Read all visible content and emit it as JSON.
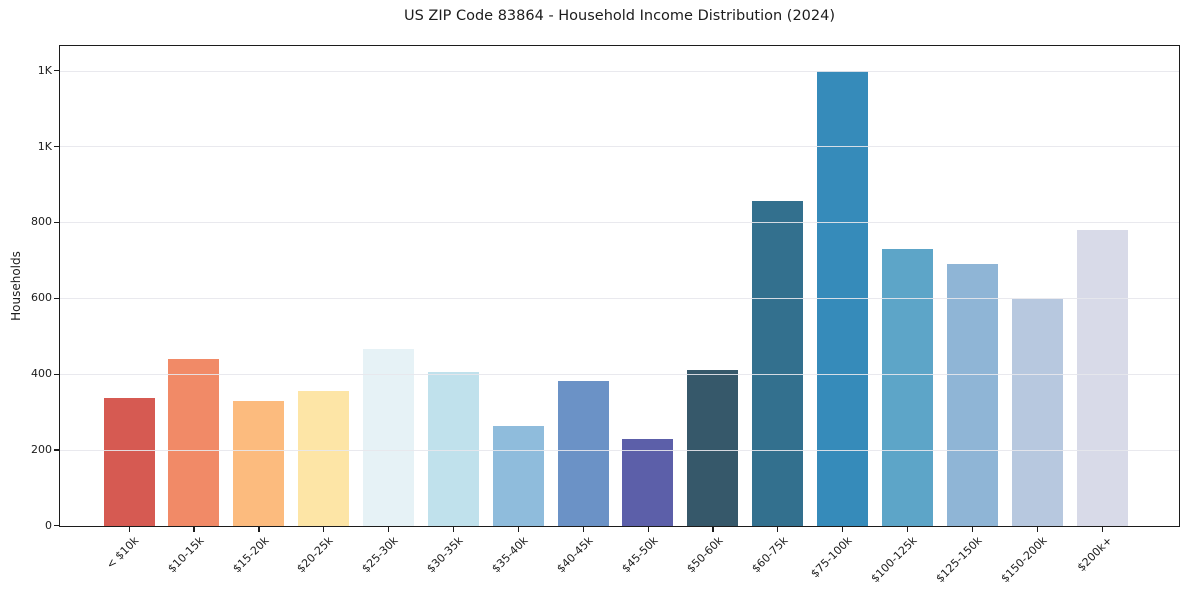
{
  "chart": {
    "title": "US ZIP Code 83864 - Household Income Distribution (2024)",
    "ylabel": "Households"
  },
  "chart_data": {
    "type": "bar",
    "title": "US ZIP Code 83864 - Household Income Distribution (2024)",
    "xlabel": "",
    "ylabel": "Households",
    "categories": [
      "< $10k",
      "$10-15k",
      "$15-20k",
      "$20-25k",
      "$25-30k",
      "$30-35k",
      "$35-40k",
      "$40-45k",
      "$45-50k",
      "$50-60k",
      "$60-75k",
      "$75-100k",
      "$100-125k",
      "$125-150k",
      "$150-200k",
      "$200k+"
    ],
    "values": [
      337,
      440,
      330,
      356,
      466,
      406,
      264,
      383,
      230,
      411,
      858,
      1200,
      730,
      692,
      600,
      781
    ],
    "bar_colors": [
      "#d65a52",
      "#f18a67",
      "#fcbb7e",
      "#fde5a6",
      "#e6f2f6",
      "#c0e1ec",
      "#8fbcdc",
      "#6b92c6",
      "#5c5fa9",
      "#36586a",
      "#33708e",
      "#368bba",
      "#5da5c8",
      "#8fb5d6",
      "#b7c8df",
      "#d8dae8"
    ],
    "y_ticks": [
      {
        "value": 0,
        "label": "0"
      },
      {
        "value": 200,
        "label": "200"
      },
      {
        "value": 400,
        "label": "400"
      },
      {
        "value": 600,
        "label": "600"
      },
      {
        "value": 800,
        "label": "800"
      },
      {
        "value": 1000,
        "label": "1K"
      },
      {
        "value": 1200,
        "label": "1K"
      }
    ],
    "ylim": [
      0,
      1265
    ],
    "grid": "horizontal-major, drawn above bars",
    "legend": "none",
    "x_tick_rotation_deg": 45
  }
}
